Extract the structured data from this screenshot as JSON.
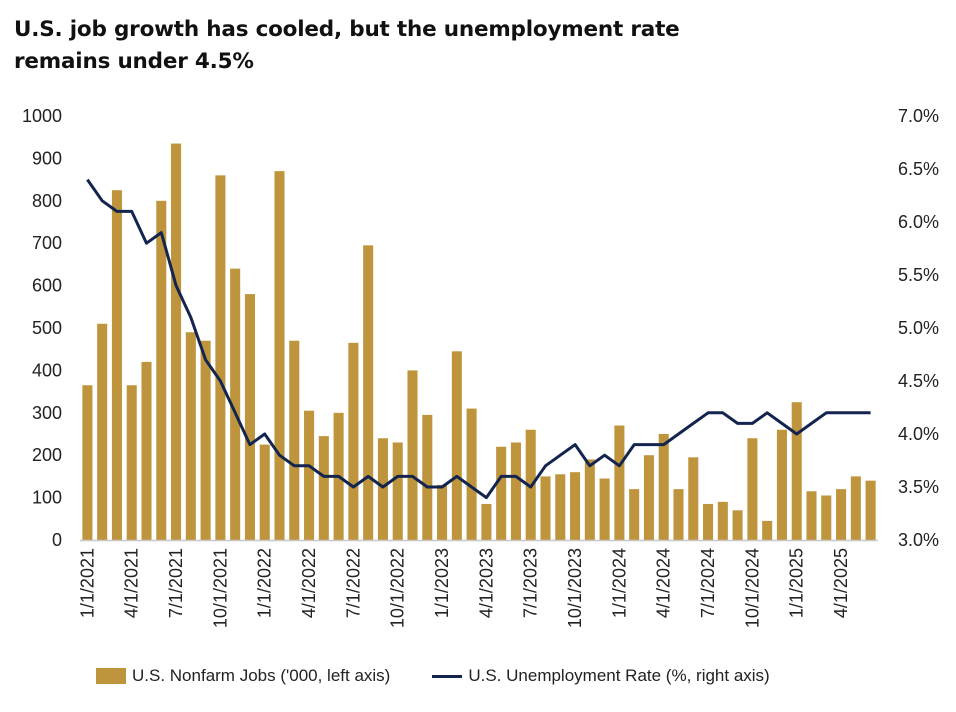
{
  "title": "U.S. job growth has cooled, but the unemployment rate remains under 4.5%",
  "colors": {
    "bars": "#BE953C",
    "line": "#13254F",
    "axis": "#C8C8C8"
  },
  "chart_data": {
    "type": "bar+line",
    "title": "U.S. job growth has cooled, but the unemployment rate remains under 4.5%",
    "x": [
      "2021-01",
      "2021-02",
      "2021-03",
      "2021-04",
      "2021-05",
      "2021-06",
      "2021-07",
      "2021-08",
      "2021-09",
      "2021-10",
      "2021-11",
      "2021-12",
      "2022-01",
      "2022-02",
      "2022-03",
      "2022-04",
      "2022-05",
      "2022-06",
      "2022-07",
      "2022-08",
      "2022-09",
      "2022-10",
      "2022-11",
      "2022-12",
      "2023-01",
      "2023-02",
      "2023-03",
      "2023-04",
      "2023-05",
      "2023-06",
      "2023-07",
      "2023-08",
      "2023-09",
      "2023-10",
      "2023-11",
      "2023-12",
      "2024-01",
      "2024-02",
      "2024-03",
      "2024-04",
      "2024-05",
      "2024-06",
      "2024-07",
      "2024-08",
      "2024-09",
      "2024-10",
      "2024-11",
      "2024-12",
      "2025-01",
      "2025-02",
      "2025-03",
      "2025-04",
      "2025-05",
      "2025-06"
    ],
    "x_tick_labels": [
      "1/1/2021",
      "4/1/2021",
      "7/1/2021",
      "10/1/2021",
      "1/1/2022",
      "4/1/2022",
      "7/1/2022",
      "10/1/2022",
      "1/1/2023",
      "4/1/2023",
      "7/1/2023",
      "10/1/2023",
      "1/1/2024",
      "4/1/2024",
      "7/1/2024",
      "10/1/2024",
      "1/1/2025",
      "4/1/2025"
    ],
    "series": [
      {
        "name": "U.S. Nonfarm Jobs ('000, left axis)",
        "type": "bar",
        "axis": "left",
        "values": [
          365,
          510,
          825,
          365,
          420,
          800,
          935,
          490,
          470,
          860,
          640,
          580,
          225,
          870,
          470,
          305,
          245,
          300,
          465,
          695,
          240,
          230,
          400,
          295,
          130,
          445,
          310,
          85,
          220,
          230,
          260,
          150,
          155,
          160,
          190,
          145,
          270,
          120,
          200,
          250,
          120,
          195,
          85,
          90,
          70,
          240,
          45,
          260,
          325,
          115,
          105,
          120,
          150,
          140
        ]
      },
      {
        "name": "U.S. Unemployment Rate (%, right axis)",
        "type": "line",
        "axis": "right",
        "values": [
          6.4,
          6.2,
          6.1,
          6.1,
          5.8,
          5.9,
          5.4,
          5.1,
          4.7,
          4.5,
          4.2,
          3.9,
          4.0,
          3.8,
          3.7,
          3.7,
          3.6,
          3.6,
          3.5,
          3.6,
          3.5,
          3.6,
          3.6,
          3.5,
          3.5,
          3.6,
          3.5,
          3.4,
          3.6,
          3.6,
          3.5,
          3.7,
          3.8,
          3.9,
          3.7,
          3.8,
          3.7,
          3.9,
          3.9,
          3.9,
          4.0,
          4.1,
          4.2,
          4.2,
          4.1,
          4.1,
          4.2,
          4.1,
          4.0,
          4.1,
          4.2,
          4.2,
          4.2,
          4.2
        ]
      }
    ],
    "y_left": {
      "lim": [
        0,
        1000
      ],
      "ticks": [
        0,
        100,
        200,
        300,
        400,
        500,
        600,
        700,
        800,
        900,
        1000
      ]
    },
    "y_right": {
      "lim": [
        3.0,
        7.0
      ],
      "ticks": [
        "3.0%",
        "3.5%",
        "4.0%",
        "4.5%",
        "5.0%",
        "5.5%",
        "6.0%",
        "6.5%",
        "7.0%"
      ]
    },
    "grid": false,
    "legend": "bottom"
  }
}
